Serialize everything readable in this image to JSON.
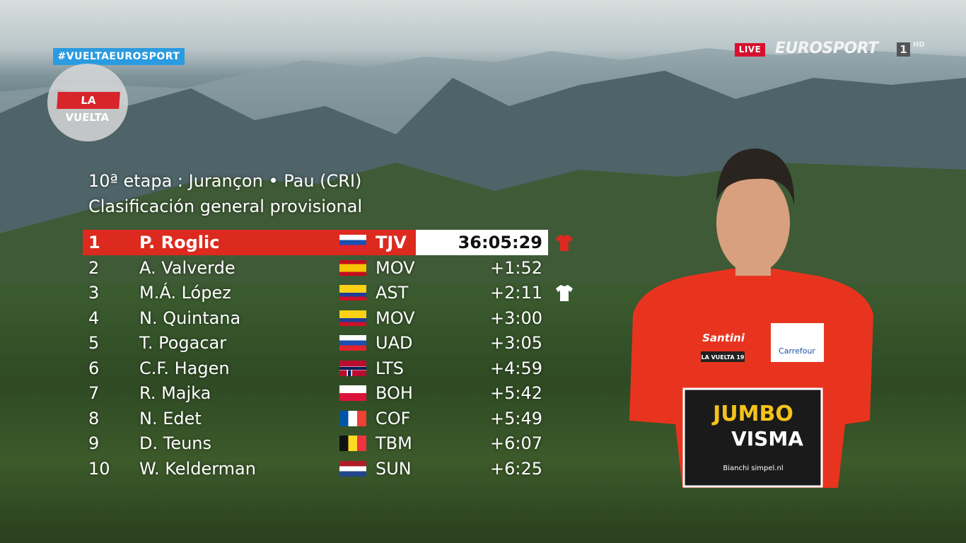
{
  "header": {
    "hashtag": "#VUELTAEUROSPORT",
    "logo_text": "LA VUELTA",
    "live_label": "LIVE",
    "channel": "EUROSPORT",
    "channel_number": "1",
    "channel_quality": "HD"
  },
  "standings": {
    "title": "10ª etapa : Jurançon • Pau (CRI)",
    "subtitle": "Clasificación general provisional",
    "rows": [
      {
        "pos": "1",
        "name": "P. Roglic",
        "flag": "slovenia",
        "team": "TJV",
        "time": "36:05:29",
        "jersey": "red"
      },
      {
        "pos": "2",
        "name": "A. Valverde",
        "flag": "spain",
        "team": "MOV",
        "time": "+1:52"
      },
      {
        "pos": "3",
        "name": "M.Á. López",
        "flag": "colombia",
        "team": "AST",
        "time": "+2:11",
        "jersey": "white"
      },
      {
        "pos": "4",
        "name": "N. Quintana",
        "flag": "colombia",
        "team": "MOV",
        "time": "+3:00"
      },
      {
        "pos": "5",
        "name": "T. Pogacar",
        "flag": "slovenia",
        "team": "UAD",
        "time": "+3:05"
      },
      {
        "pos": "6",
        "name": "C.F. Hagen",
        "flag": "norway",
        "team": "LTS",
        "time": "+4:59"
      },
      {
        "pos": "7",
        "name": "R. Majka",
        "flag": "poland",
        "team": "BOH",
        "time": "+5:42"
      },
      {
        "pos": "8",
        "name": "N. Edet",
        "flag": "france",
        "team": "COF",
        "time": "+5:49"
      },
      {
        "pos": "9",
        "name": "D. Teuns",
        "flag": "belgium",
        "team": "TBM",
        "time": "+6:07"
      },
      {
        "pos": "10",
        "name": "W. Kelderman",
        "flag": "netherlands",
        "team": "SUN",
        "time": "+6:25"
      }
    ]
  },
  "rider_jersey": {
    "sponsor1": "JUMBO",
    "sponsor2": "VISMA",
    "brand": "Santini",
    "sponsor3": "Carrefour",
    "badge": "LA VUELTA 19",
    "small": "Bianchi simpel.nl"
  },
  "colors": {
    "leader_red": "#dc2a1f",
    "hashtag_blue": "#2b9be0",
    "live_red": "#d7102f"
  }
}
